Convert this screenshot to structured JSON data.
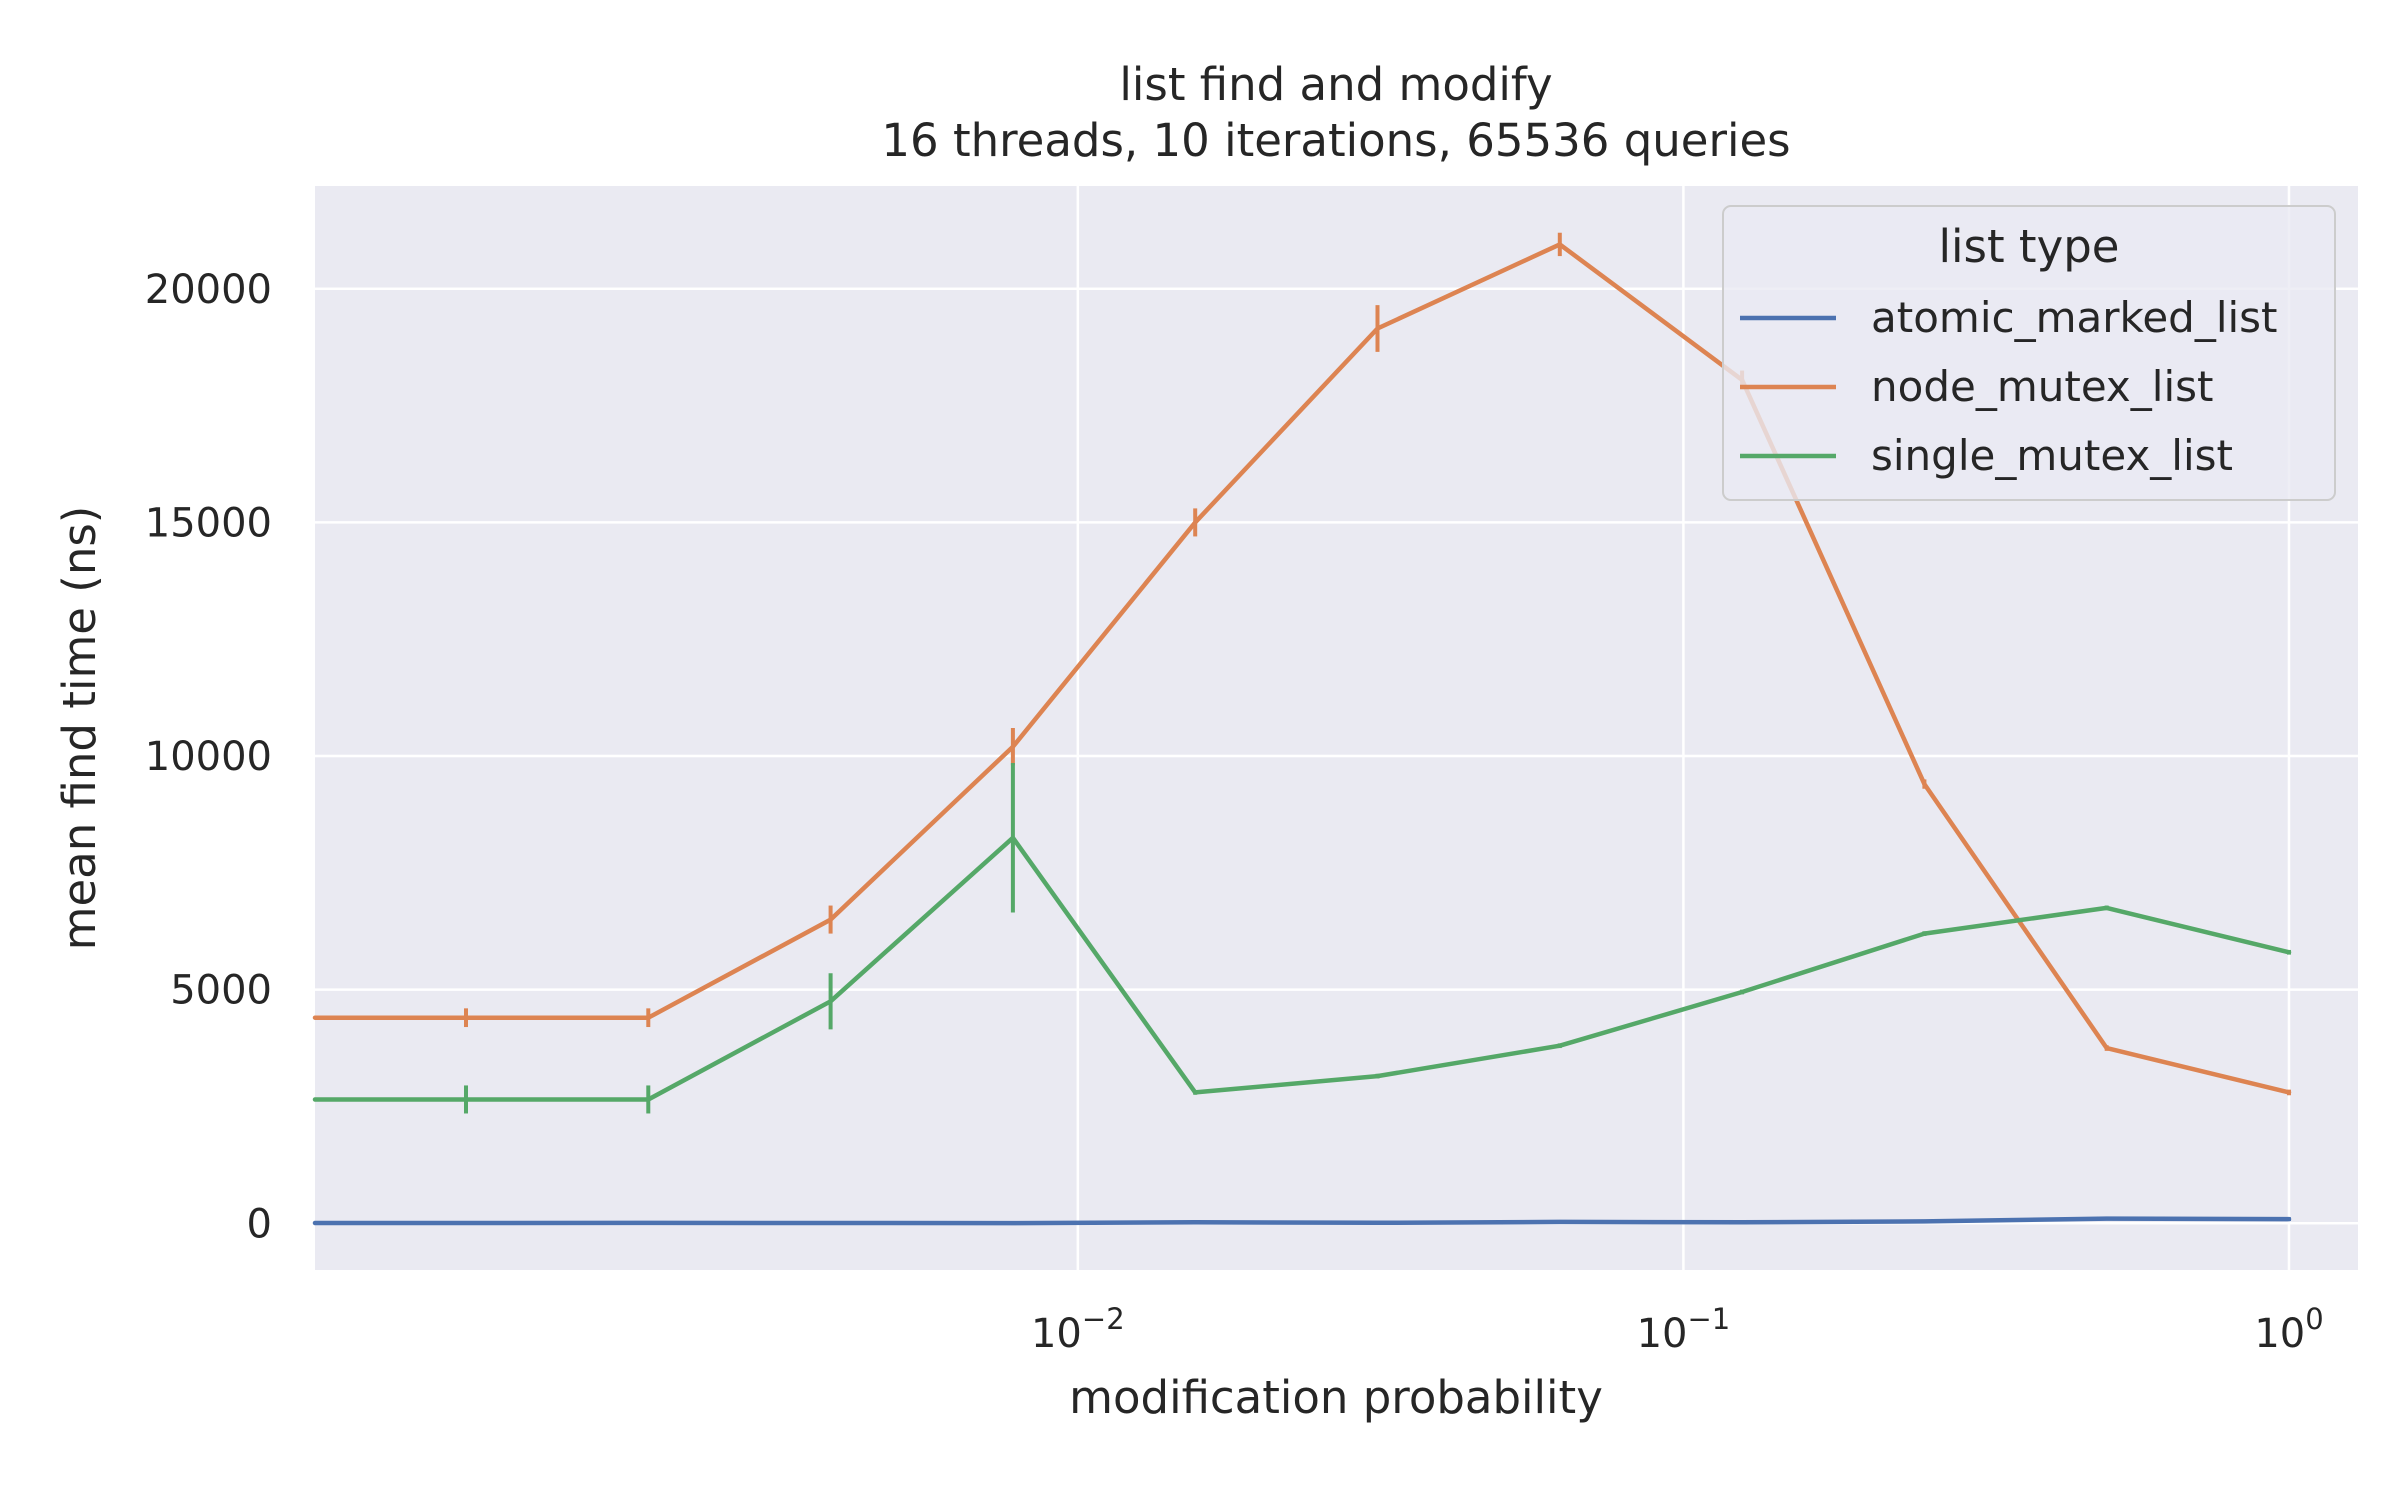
{
  "chart_data": {
    "type": "line",
    "title": "list find and modify",
    "subtitle": "16 threads, 10 iterations, 65536 queries",
    "xlabel": "modification probability",
    "ylabel": "mean find time (ns)",
    "xscale": "log",
    "xlim": [
      0.00055,
      1.3
    ],
    "ylim": [
      -1000,
      22200
    ],
    "yticks": [
      0,
      5000,
      10000,
      15000,
      20000
    ],
    "ytick_labels": [
      "0",
      "5000",
      "10000",
      "15000",
      "20000"
    ],
    "xticks": [
      0.01,
      0.1,
      1
    ],
    "xtick_labels": {
      "0.01": {
        "base": "10",
        "exp": "−2"
      },
      "0.1": {
        "base": "10",
        "exp": "−1"
      },
      "1": {
        "base": "10",
        "exp": "0"
      }
    },
    "grid": true,
    "legend": {
      "title": "list type",
      "position": "top-right"
    },
    "x": [
      0.00048828125,
      0.0009765625,
      0.001953125,
      0.00390625,
      0.0078125,
      0.015625,
      0.03125,
      0.0625,
      0.125,
      0.25,
      0.5,
      1.0
    ],
    "series": [
      {
        "name": "atomic_marked_list",
        "color": "#4c72b0",
        "values": [
          5,
          6,
          7,
          5,
          4,
          20,
          10,
          30,
          20,
          40,
          100,
          90
        ],
        "errors": [
          10,
          10,
          10,
          10,
          10,
          20,
          10,
          30,
          20,
          30,
          40,
          40
        ]
      },
      {
        "name": "node_mutex_list",
        "color": "#dd8452",
        "values": [
          4400,
          4400,
          4400,
          6500,
          10200,
          15000,
          19150,
          20950,
          18050,
          9400,
          3750,
          2800
        ],
        "errors": [
          200,
          200,
          200,
          300,
          400,
          300,
          500,
          250,
          200,
          100,
          60,
          60
        ]
      },
      {
        "name": "single_mutex_list",
        "color": "#55a868",
        "values": [
          2650,
          2650,
          2650,
          4750,
          8250,
          2800,
          3150,
          3800,
          4950,
          6200,
          6750,
          5800
        ],
        "errors": [
          300,
          300,
          300,
          600,
          1600,
          50,
          50,
          50,
          50,
          50,
          50,
          50
        ]
      }
    ]
  }
}
